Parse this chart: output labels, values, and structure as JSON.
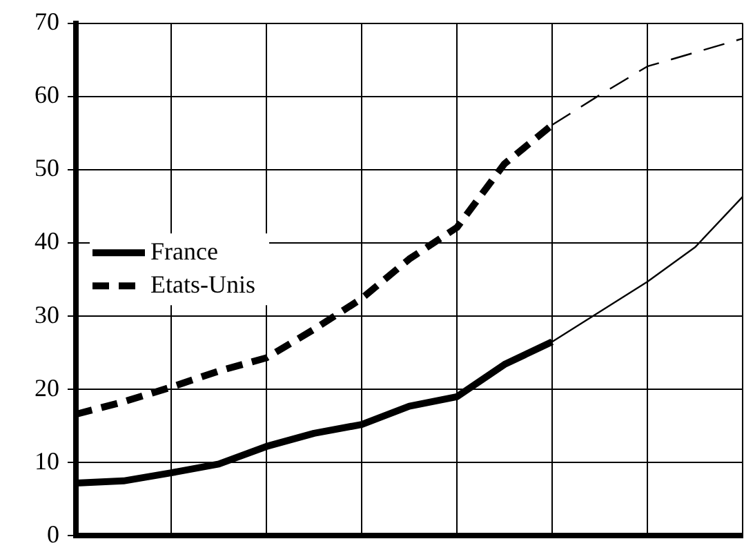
{
  "chart_data": {
    "type": "line",
    "categories": [
      null,
      null,
      null,
      null,
      null,
      null,
      null,
      null,
      null,
      null,
      null,
      null,
      null,
      null,
      null
    ],
    "ylim": [
      0,
      70
    ],
    "yticks": [
      0,
      10,
      20,
      30,
      40,
      50,
      60,
      70
    ],
    "tick_labels": "y",
    "grid": true,
    "legend": "left",
    "marker": "none",
    "series": [
      {
        "name": "France",
        "color": "#000000",
        "line_style": "solid",
        "values": [
          7.2,
          7.5,
          8.6,
          9.8,
          12.2,
          14,
          15.2,
          17.7,
          19,
          23.4,
          26.5,
          null,
          null,
          null,
          null
        ]
      },
      {
        "name": "Etats-Unis",
        "color": "#000000",
        "line_style": "dashed",
        "values": [
          16.6,
          18.3,
          20.3,
          22.5,
          24.3,
          28.2,
          32.4,
          37.8,
          42.1,
          50.8,
          56.1,
          null,
          null,
          null,
          null
        ]
      },
      {
        "color": "#000000",
        "line_style": "solid",
        "values": [
          null,
          null,
          null,
          null,
          null,
          null,
          null,
          null,
          null,
          null,
          26.5,
          30.6,
          34.7,
          39.4,
          46.3
        ]
      },
      {
        "color": "#000000",
        "line_style": "dashed",
        "values": [
          null,
          null,
          null,
          null,
          null,
          null,
          null,
          null,
          null,
          null,
          56.1,
          60.2,
          64.1,
          66,
          67.9
        ]
      }
    ]
  }
}
